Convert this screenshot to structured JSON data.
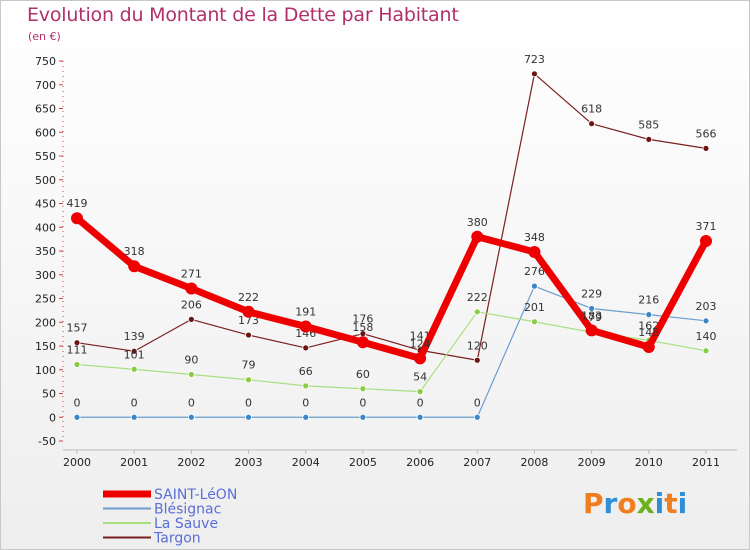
{
  "title": "Evolution du Montant de la Dette par Habitant",
  "subtitle": "(en €)",
  "logo": {
    "text": "Proxiti",
    "letters": [
      {
        "ch": "P",
        "color": "#f07d1e"
      },
      {
        "ch": "r",
        "color": "#2f8fd6"
      },
      {
        "ch": "o",
        "color": "#f07d1e"
      },
      {
        "ch": "x",
        "color": "#6ab21e"
      },
      {
        "ch": "i",
        "color": "#2f8fd6"
      },
      {
        "ch": "t",
        "color": "#f07d1e"
      },
      {
        "ch": "i",
        "color": "#2f8fd6"
      }
    ]
  },
  "chart_data": {
    "type": "line",
    "title": "Evolution du Montant de la Dette par Habitant",
    "subtitle": "(en €)",
    "xlabel": "",
    "ylabel": "",
    "ylim": [
      -50,
      750
    ],
    "yticks": [
      -50,
      0,
      50,
      100,
      150,
      200,
      250,
      300,
      350,
      400,
      450,
      500,
      550,
      600,
      650,
      700,
      750
    ],
    "x": [
      "2000",
      "2001",
      "2002",
      "2003",
      "2004",
      "2005",
      "2006",
      "2007",
      "2008",
      "2009",
      "2010",
      "2011"
    ],
    "grid": false,
    "legend_position": "bottom-left",
    "series": [
      {
        "name": "Targon",
        "color": "#7a2020",
        "point_color": "#6a1414",
        "width": 1.2,
        "values": [
          157,
          139,
          206,
          173,
          146,
          176,
          141,
          120,
          723,
          618,
          585,
          566
        ]
      },
      {
        "name": "Blésignac",
        "color": "#6a9ed0",
        "point_color": "#3a86c8",
        "width": 1.2,
        "values": [
          0,
          0,
          0,
          0,
          0,
          0,
          0,
          0,
          276,
          229,
          216,
          203
        ]
      },
      {
        "name": "La Sauve",
        "color": "#a8e080",
        "point_color": "#88cc44",
        "width": 1.2,
        "values": [
          111,
          101,
          90,
          79,
          66,
          60,
          54,
          222,
          201,
          179,
          162,
          140
        ]
      },
      {
        "name": "SAINT-LéON",
        "color": "#ee0000",
        "point_color": "#ee0000",
        "width": 7,
        "values": [
          419,
          318,
          271,
          222,
          191,
          158,
          124,
          380,
          348,
          183,
          148,
          371
        ]
      }
    ],
    "legend_order": [
      "SAINT-LéON",
      "Blésignac",
      "La Sauve",
      "Targon"
    ]
  }
}
